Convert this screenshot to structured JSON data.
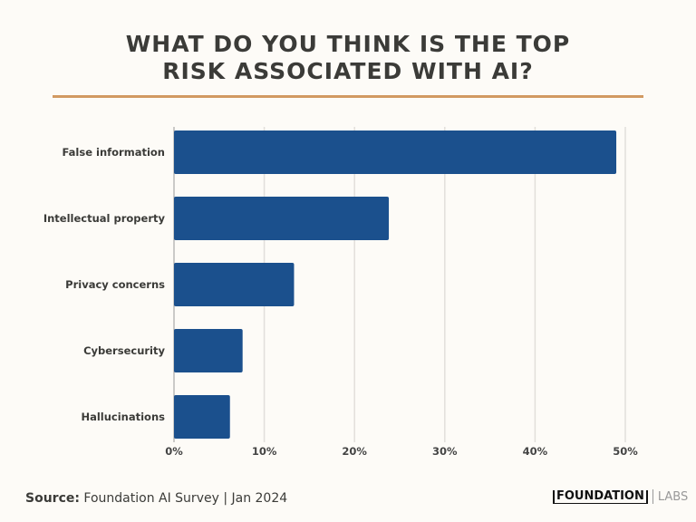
{
  "chart_data": {
    "type": "bar",
    "orientation": "horizontal",
    "title": "WHAT DO YOU THINK IS THE TOP RISK ASSOCIATED WITH AI?",
    "title_lines": [
      "WHAT DO YOU THINK IS THE TOP",
      "RISK ASSOCIATED WITH AI?"
    ],
    "categories": [
      "False information",
      "Intellectual property",
      "Privacy concerns",
      "Cybersecurity",
      "Hallucinations"
    ],
    "values": [
      49,
      23.8,
      13.3,
      7.6,
      6.2
    ],
    "xlim": [
      0,
      50
    ],
    "ticks": [
      "0%",
      "10%",
      "20%",
      "30%",
      "40%",
      "50%"
    ],
    "tick_values": [
      0,
      10,
      20,
      30,
      40,
      50
    ],
    "grid": true,
    "bar_color": "#1b508d",
    "accent_color": "#d29a62"
  },
  "footer": {
    "source_label": "Source:",
    "source_text": " Foundation AI Survey | Jan 2024",
    "logo_main": "FOUNDATION",
    "logo_sub": "LABS"
  }
}
